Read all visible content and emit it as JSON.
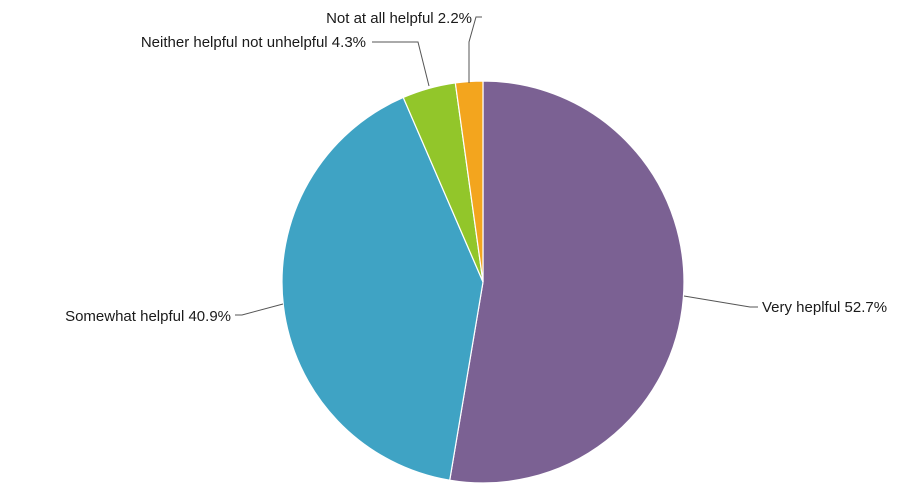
{
  "chart_data": {
    "type": "pie",
    "title": "",
    "start_angle_deg": 0,
    "direction": "clockwise",
    "slices": [
      {
        "label": "Very heplful",
        "value": 52.7,
        "display": "Very heplful 52.7%",
        "color": "#7b6193"
      },
      {
        "label": "Somewhat helpful",
        "value": 40.9,
        "display": "Somewhat helpful 40.9%",
        "color": "#3fa3c4"
      },
      {
        "label": "Neither helpful not unhelpful",
        "value": 4.3,
        "display": "Neither helpful not unhelpful 4.3%",
        "color": "#92c62a"
      },
      {
        "label": "Not at all helpful",
        "value": 2.2,
        "display": "Not at all helpful 2.2%",
        "color": "#f3a51e"
      }
    ]
  }
}
